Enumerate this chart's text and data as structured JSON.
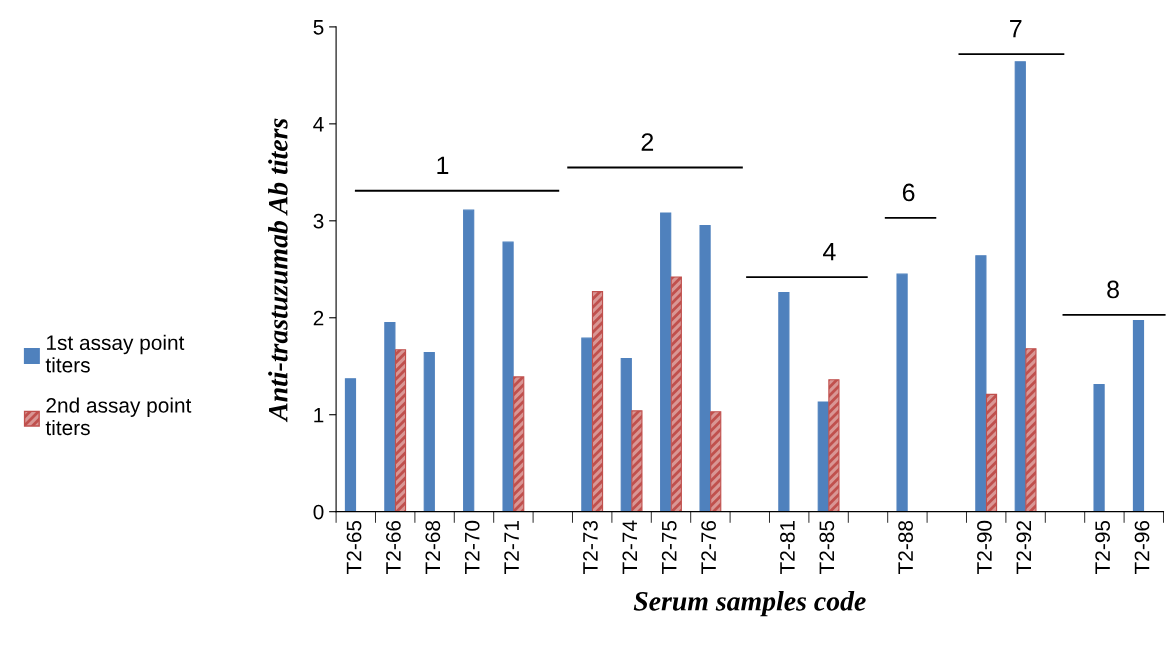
{
  "chart_data": {
    "type": "bar",
    "xlabel": "Serum samples code",
    "ylabel": "Anti-trastuzumab Ab titers",
    "categories": [
      "T2-65",
      "T2-66",
      "T2-68",
      "T2-70",
      "T2-71",
      null,
      "T2-73",
      "T2-74",
      "T2-75",
      "T2-76",
      null,
      "T2-81",
      "T2-85",
      null,
      "T2-88",
      null,
      "T2-90",
      "T2-92",
      null,
      "T2-95",
      "T2-96"
    ],
    "series": [
      {
        "name": "1st assay point titers",
        "color": "#4f81bd",
        "values": [
          1.37,
          1.95,
          1.64,
          3.11,
          2.78,
          null,
          1.79,
          1.58,
          3.08,
          2.95,
          null,
          2.26,
          1.13,
          null,
          2.45,
          null,
          2.64,
          4.64,
          null,
          1.31,
          1.97
        ]
      },
      {
        "name": "2nd assay point titers",
        "color": "#c0504d",
        "values": [
          null,
          1.67,
          null,
          null,
          1.39,
          null,
          2.27,
          1.04,
          2.42,
          1.03,
          null,
          null,
          1.36,
          null,
          null,
          null,
          1.21,
          1.68,
          null,
          null,
          null
        ]
      }
    ],
    "ylim": [
      0,
      5
    ],
    "yticks": [
      0,
      1,
      2,
      3,
      4,
      5
    ],
    "grid": false,
    "legend": "left",
    "annotations": [
      "1",
      "2",
      "4",
      "6",
      "7",
      "8"
    ]
  }
}
